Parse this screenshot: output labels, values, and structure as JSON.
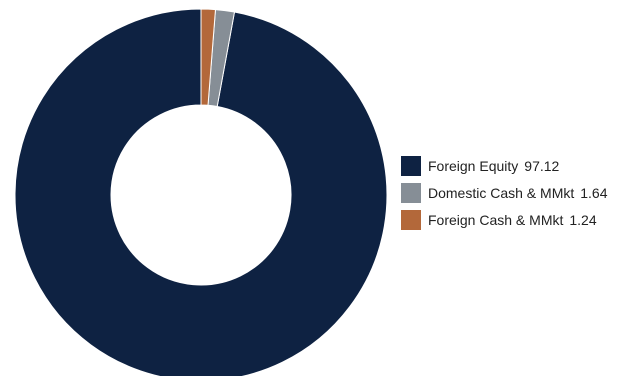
{
  "chart_data": {
    "type": "pie",
    "variant": "donut",
    "title": "",
    "legend_position": "right",
    "slices": [
      {
        "label": "Foreign Equity",
        "value": 97.12,
        "color": "#0e2242"
      },
      {
        "label": "Domestic Cash & MMkt",
        "value": 1.64,
        "color": "#868e96"
      },
      {
        "label": "Foreign Cash & MMkt",
        "value": 1.24,
        "color": "#b3683a"
      }
    ]
  }
}
